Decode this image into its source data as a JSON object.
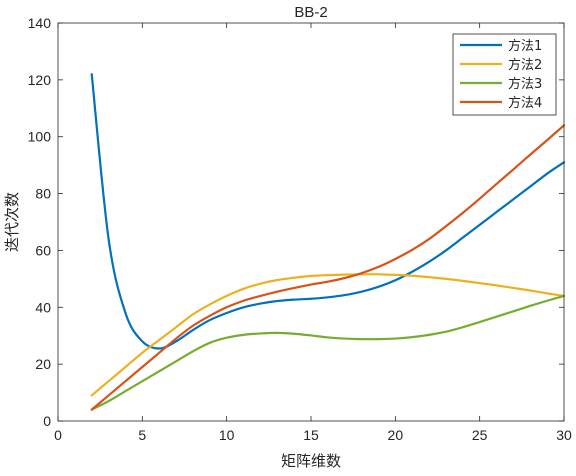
{
  "chart_data": {
    "type": "line",
    "title": "BB-2",
    "xlabel": "矩阵维数",
    "ylabel": "迭代次数",
    "xlim": [
      0,
      30
    ],
    "ylim": [
      0,
      140
    ],
    "xticks": [
      0,
      5,
      10,
      15,
      20,
      25,
      30
    ],
    "yticks": [
      0,
      20,
      40,
      60,
      80,
      100,
      120,
      140
    ],
    "grid": false,
    "legend_position": "top-right",
    "x": [
      2,
      3,
      4,
      5,
      6,
      7,
      8,
      9,
      10,
      11,
      12,
      13,
      14,
      15,
      16,
      17,
      18,
      19,
      20,
      21,
      22,
      23,
      24,
      25,
      26,
      27,
      28,
      29,
      30
    ],
    "series": [
      {
        "name": "方法1",
        "color": "#0072BD",
        "values": [
          122,
          64,
          38,
          28,
          25.5,
          28,
          32,
          35.5,
          38,
          40,
          41.3,
          42.2,
          42.7,
          43,
          43.5,
          44.3,
          45.5,
          47.2,
          49.5,
          52.5,
          56,
          60,
          64.5,
          69,
          73.5,
          78,
          82.5,
          87,
          91
        ]
      },
      {
        "name": "方法2",
        "color": "#EDB120",
        "values": [
          9,
          14,
          19,
          24,
          28.5,
          33,
          37.5,
          41,
          44,
          46.5,
          48.3,
          49.6,
          50.4,
          51,
          51.3,
          51.5,
          51.6,
          51.6,
          51.4,
          51.1,
          50.6,
          50,
          49.3,
          48.5,
          47.7,
          46.8,
          45.9,
          44.9,
          44
        ]
      },
      {
        "name": "方法3",
        "color": "#77AC30",
        "values": [
          4,
          7,
          10.5,
          14,
          17.5,
          21,
          24.5,
          27.5,
          29.3,
          30.3,
          30.8,
          31,
          30.7,
          30.1,
          29.4,
          29,
          28.8,
          28.8,
          29,
          29.5,
          30.3,
          31.4,
          33,
          34.8,
          36.7,
          38.6,
          40.5,
          42.3,
          44
        ]
      },
      {
        "name": "方法4",
        "color": "#D95319",
        "values": [
          4,
          9,
          14,
          19,
          24,
          29,
          33.5,
          37,
          40,
          42.3,
          44,
          45.5,
          46.8,
          48,
          49,
          50.3,
          52,
          54.2,
          57,
          60.2,
          64,
          68.5,
          73.2,
          78.2,
          83.4,
          88.5,
          93.7,
          98.8,
          104
        ]
      }
    ]
  }
}
